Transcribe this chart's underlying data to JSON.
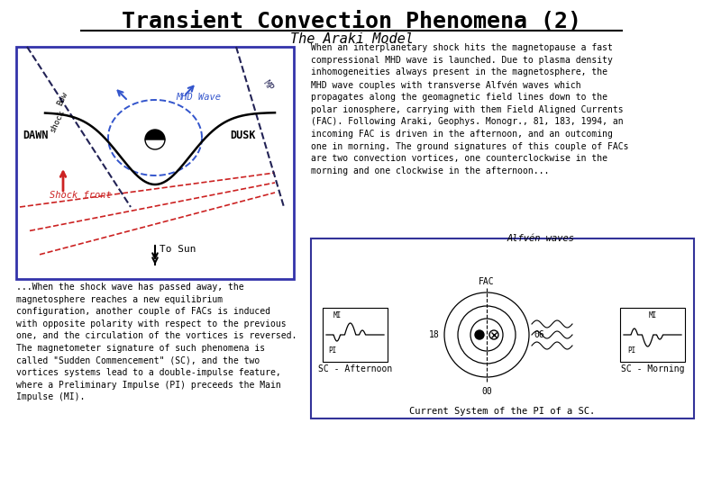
{
  "title": "Transient Convection Phenomena (2)",
  "subtitle": "The Araki Model",
  "bg_color": "#ffffff",
  "title_color": "#000000",
  "subtitle_color": "#000000",
  "diagram_box_color": "#3333aa",
  "dawn_label": "DAWN",
  "dusk_label": "DUSK",
  "mhd_wave_label": "MHD Wave",
  "mp_label": "MP",
  "shock_front_label": "Shock front",
  "to_sun_label": "⇓ To Sun",
  "alfven_label": "Alfvén waves",
  "sc_afternoon_label": "SC - Afternoon",
  "sc_morning_label": "SC - Morning",
  "current_system_label": "Current System of the PI of a SC.",
  "fac_label": "FAC",
  "text_right_top": "When an interplanetary shock hits the magnetopause a fast\ncompressional MHD wave is launched. Due to plasma density\ninhomogeneities always present in the magnetosphere, the\nMHD wave couples with transverse Alfvén waves which\npropagates along the geomagnetic field lines down to the\npolar ionosphere, carrying with them Field Aligned Currents\n(FAC). Following Araki, Geophys. Monogr., 81, 183, 1994, an\nincoming FAC is driven in the afternoon, and an outcoming\none in morning. The ground signatures of this couple of FACs\nare two convection vortices, one counterclockwise in the\nmorning and one clockwise in the afternoon...",
  "text_bottom_left": "...When the shock wave has passed away, the\nmagnetosphere reaches a new equilibrium\nconfiguration, another couple of FACs is induced\nwith opposite polarity with respect to the previous\none, and the circulation of the vortices is reversed.\nThe magnetometer signature of such phenomena is\ncalled \"Sudden Commencement\" (SC), and the two\nvortices systems lead to a double-impulse feature,\nwhere a Preliminary Impulse (PI) preceeds the Main\nImpulse (MI)."
}
